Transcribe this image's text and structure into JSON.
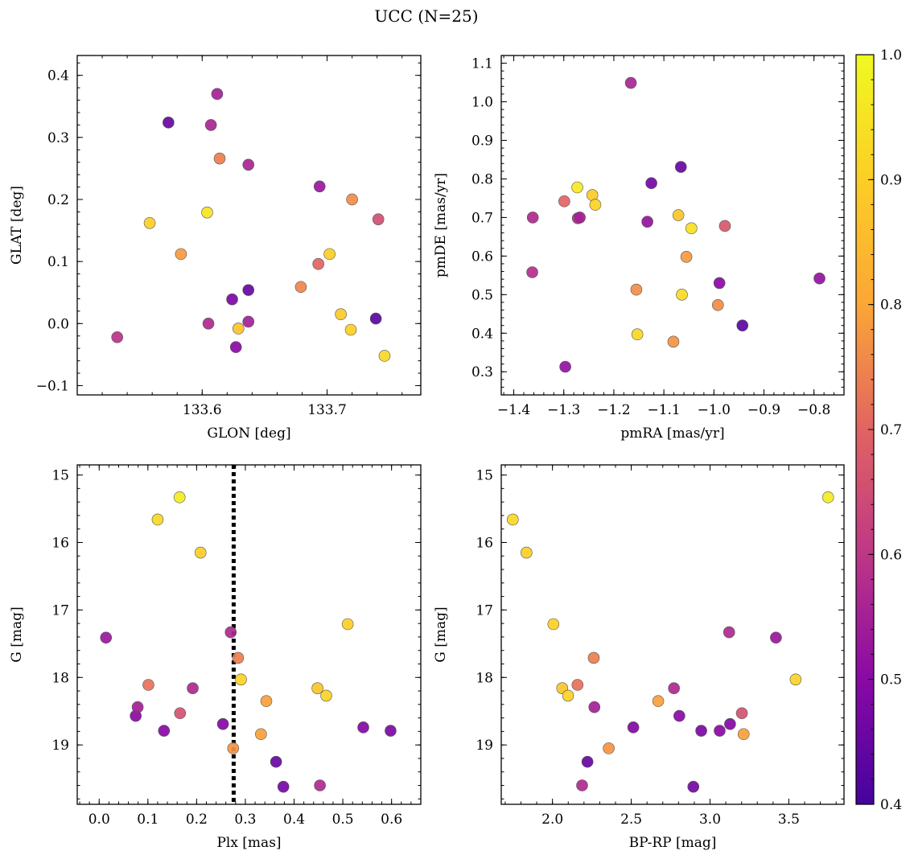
{
  "figure": {
    "title": "UCC (N=25)"
  },
  "colorbar": {
    "range": [
      0.4,
      1.0
    ],
    "colormap": "plasma",
    "ticks": [
      0.4,
      0.5,
      0.6,
      0.7,
      0.8,
      0.9,
      1.0
    ],
    "tick_labels": [
      "0.4",
      "0.5",
      "0.6",
      "0.7",
      "0.8",
      "0.9",
      "1.0"
    ]
  },
  "chart_data": [
    {
      "type": "scatter",
      "xlabel": "GLON [deg]",
      "ylabel": "GLAT [deg]",
      "xlim": [
        133.5,
        133.775
      ],
      "ylim": [
        -0.115,
        0.432
      ],
      "xticks": [
        133.6,
        133.7
      ],
      "xtick_labels": [
        "133.6",
        "133.7"
      ],
      "yticks": [
        -0.1,
        0.0,
        0.1,
        0.2,
        0.3,
        0.4
      ],
      "ytick_labels": [
        "−0.1",
        "0.0",
        "0.1",
        "0.2",
        "0.3",
        "0.4"
      ],
      "invert_y": false,
      "points": [
        {
          "x": 133.532,
          "y": -0.022,
          "c": 0.59
        },
        {
          "x": 133.558,
          "y": 0.162,
          "c": 0.9
        },
        {
          "x": 133.573,
          "y": 0.324,
          "c": 0.45
        },
        {
          "x": 133.583,
          "y": 0.112,
          "c": 0.78
        },
        {
          "x": 133.604,
          "y": 0.179,
          "c": 0.95
        },
        {
          "x": 133.605,
          "y": 0.0,
          "c": 0.57
        },
        {
          "x": 133.607,
          "y": 0.32,
          "c": 0.56
        },
        {
          "x": 133.612,
          "y": 0.37,
          "c": 0.55
        },
        {
          "x": 133.614,
          "y": 0.266,
          "c": 0.74
        },
        {
          "x": 133.624,
          "y": 0.039,
          "c": 0.48
        },
        {
          "x": 133.627,
          "y": -0.038,
          "c": 0.5
        },
        {
          "x": 133.629,
          "y": -0.008,
          "c": 0.87
        },
        {
          "x": 133.637,
          "y": 0.256,
          "c": 0.56
        },
        {
          "x": 133.637,
          "y": 0.003,
          "c": 0.55
        },
        {
          "x": 133.637,
          "y": 0.054,
          "c": 0.45
        },
        {
          "x": 133.679,
          "y": 0.059,
          "c": 0.75
        },
        {
          "x": 133.693,
          "y": 0.096,
          "c": 0.7
        },
        {
          "x": 133.694,
          "y": 0.221,
          "c": 0.53
        },
        {
          "x": 133.702,
          "y": 0.112,
          "c": 0.9
        },
        {
          "x": 133.711,
          "y": 0.015,
          "c": 0.89
        },
        {
          "x": 133.719,
          "y": -0.01,
          "c": 0.9
        },
        {
          "x": 133.72,
          "y": 0.2,
          "c": 0.76
        },
        {
          "x": 133.739,
          "y": 0.008,
          "c": 0.43
        },
        {
          "x": 133.741,
          "y": 0.168,
          "c": 0.65
        },
        {
          "x": 133.746,
          "y": -0.052,
          "c": 0.92
        }
      ]
    },
    {
      "type": "scatter",
      "xlabel": "pmRA [mas/yr]",
      "ylabel": "pmDE [mas/yr]",
      "xlim": [
        -1.425,
        -0.74
      ],
      "ylim": [
        0.24,
        1.12
      ],
      "xticks": [
        -1.4,
        -1.3,
        -1.2,
        -1.1,
        -1.0,
        -0.9,
        -0.8
      ],
      "xtick_labels": [
        "−1.4",
        "−1.3",
        "−1.2",
        "−1.1",
        "−1.0",
        "−0.9",
        "−0.8"
      ],
      "yticks": [
        0.3,
        0.4,
        0.5,
        0.6,
        0.7,
        0.8,
        0.9,
        1.0,
        1.1
      ],
      "ytick_labels": [
        "0.3",
        "0.4",
        "0.5",
        "0.6",
        "0.7",
        "0.8",
        "0.9",
        "1.0",
        "1.1"
      ],
      "invert_y": false,
      "points": [
        {
          "x": -1.362,
          "y": 0.7,
          "c": 0.57
        },
        {
          "x": -1.363,
          "y": 0.558,
          "c": 0.58
        },
        {
          "x": -1.299,
          "y": 0.742,
          "c": 0.7
        },
        {
          "x": -1.297,
          "y": 0.313,
          "c": 0.52
        },
        {
          "x": -1.273,
          "y": 0.778,
          "c": 0.96
        },
        {
          "x": -1.272,
          "y": 0.698,
          "c": 0.58
        },
        {
          "x": -1.268,
          "y": 0.7,
          "c": 0.55
        },
        {
          "x": -1.243,
          "y": 0.758,
          "c": 0.89
        },
        {
          "x": -1.237,
          "y": 0.733,
          "c": 0.91
        },
        {
          "x": -1.166,
          "y": 1.049,
          "c": 0.56
        },
        {
          "x": -1.155,
          "y": 0.513,
          "c": 0.76
        },
        {
          "x": -1.153,
          "y": 0.397,
          "c": 0.92
        },
        {
          "x": -1.133,
          "y": 0.689,
          "c": 0.52
        },
        {
          "x": -1.125,
          "y": 0.789,
          "c": 0.47
        },
        {
          "x": -1.081,
          "y": 0.378,
          "c": 0.77
        },
        {
          "x": -1.071,
          "y": 0.706,
          "c": 0.88
        },
        {
          "x": -1.066,
          "y": 0.831,
          "c": 0.45
        },
        {
          "x": -1.064,
          "y": 0.5,
          "c": 0.93
        },
        {
          "x": -1.055,
          "y": 0.598,
          "c": 0.78
        },
        {
          "x": -1.045,
          "y": 0.672,
          "c": 0.94
        },
        {
          "x": -0.992,
          "y": 0.473,
          "c": 0.76
        },
        {
          "x": -0.989,
          "y": 0.53,
          "c": 0.5
        },
        {
          "x": -0.978,
          "y": 0.678,
          "c": 0.67
        },
        {
          "x": -0.943,
          "y": 0.42,
          "c": 0.43
        },
        {
          "x": -0.789,
          "y": 0.542,
          "c": 0.52
        }
      ]
    },
    {
      "type": "scatter",
      "xlabel": "Plx [mas]",
      "ylabel": "G [mag]",
      "xlim": [
        -0.045,
        0.66
      ],
      "ylim": [
        19.88,
        14.85
      ],
      "xticks": [
        0.0,
        0.1,
        0.2,
        0.3,
        0.4,
        0.5,
        0.6
      ],
      "xtick_labels": [
        "0.0",
        "0.1",
        "0.2",
        "0.3",
        "0.4",
        "0.5",
        "0.6"
      ],
      "yticks": [
        15,
        16,
        17,
        18,
        19
      ],
      "ytick_labels": [
        "15",
        "16",
        "17",
        "18",
        "19"
      ],
      "invert_y": true,
      "vline": 0.276,
      "points": [
        {
          "x": 0.014,
          "y": 17.41,
          "c": 0.53
        },
        {
          "x": 0.075,
          "y": 18.57,
          "c": 0.5
        },
        {
          "x": 0.079,
          "y": 18.44,
          "c": 0.55
        },
        {
          "x": 0.101,
          "y": 18.11,
          "c": 0.72
        },
        {
          "x": 0.12,
          "y": 15.66,
          "c": 0.92
        },
        {
          "x": 0.133,
          "y": 18.79,
          "c": 0.5
        },
        {
          "x": 0.165,
          "y": 15.33,
          "c": 0.97
        },
        {
          "x": 0.166,
          "y": 18.53,
          "c": 0.66
        },
        {
          "x": 0.192,
          "y": 18.16,
          "c": 0.57
        },
        {
          "x": 0.208,
          "y": 16.15,
          "c": 0.9
        },
        {
          "x": 0.254,
          "y": 18.69,
          "c": 0.49
        },
        {
          "x": 0.27,
          "y": 17.33,
          "c": 0.57
        },
        {
          "x": 0.275,
          "y": 19.05,
          "c": 0.77
        },
        {
          "x": 0.285,
          "y": 17.71,
          "c": 0.74
        },
        {
          "x": 0.291,
          "y": 18.03,
          "c": 0.91
        },
        {
          "x": 0.332,
          "y": 18.84,
          "c": 0.79
        },
        {
          "x": 0.343,
          "y": 18.35,
          "c": 0.79
        },
        {
          "x": 0.363,
          "y": 19.25,
          "c": 0.45
        },
        {
          "x": 0.378,
          "y": 19.62,
          "c": 0.47
        },
        {
          "x": 0.448,
          "y": 18.16,
          "c": 0.88
        },
        {
          "x": 0.453,
          "y": 19.6,
          "c": 0.57
        },
        {
          "x": 0.466,
          "y": 18.27,
          "c": 0.91
        },
        {
          "x": 0.51,
          "y": 17.21,
          "c": 0.9
        },
        {
          "x": 0.542,
          "y": 18.74,
          "c": 0.49
        },
        {
          "x": 0.598,
          "y": 18.79,
          "c": 0.48
        }
      ]
    },
    {
      "type": "scatter",
      "xlabel": "BP-RP [mag]",
      "ylabel": "G [mag]",
      "xlim": [
        1.675,
        3.85
      ],
      "ylim": [
        19.88,
        14.85
      ],
      "xticks": [
        2.0,
        2.5,
        3.0,
        3.5
      ],
      "xtick_labels": [
        "2.0",
        "2.5",
        "3.0",
        "3.5"
      ],
      "yticks": [
        15,
        16,
        17,
        18,
        19
      ],
      "ytick_labels": [
        "15",
        "16",
        "17",
        "18",
        "19"
      ],
      "invert_y": true,
      "points": [
        {
          "x": 1.748,
          "y": 15.66,
          "c": 0.92
        },
        {
          "x": 1.835,
          "y": 16.15,
          "c": 0.9
        },
        {
          "x": 2.006,
          "y": 17.21,
          "c": 0.9
        },
        {
          "x": 2.062,
          "y": 18.16,
          "c": 0.88
        },
        {
          "x": 2.099,
          "y": 18.27,
          "c": 0.91
        },
        {
          "x": 2.159,
          "y": 18.11,
          "c": 0.72
        },
        {
          "x": 2.188,
          "y": 19.6,
          "c": 0.57
        },
        {
          "x": 2.222,
          "y": 19.25,
          "c": 0.45
        },
        {
          "x": 2.262,
          "y": 17.71,
          "c": 0.74
        },
        {
          "x": 2.266,
          "y": 18.44,
          "c": 0.55
        },
        {
          "x": 2.357,
          "y": 19.05,
          "c": 0.77
        },
        {
          "x": 2.513,
          "y": 18.74,
          "c": 0.49
        },
        {
          "x": 2.671,
          "y": 18.35,
          "c": 0.79
        },
        {
          "x": 2.771,
          "y": 18.16,
          "c": 0.57
        },
        {
          "x": 2.805,
          "y": 18.57,
          "c": 0.5
        },
        {
          "x": 2.894,
          "y": 19.62,
          "c": 0.47
        },
        {
          "x": 2.944,
          "y": 18.79,
          "c": 0.48
        },
        {
          "x": 3.061,
          "y": 18.79,
          "c": 0.5
        },
        {
          "x": 3.121,
          "y": 17.33,
          "c": 0.57
        },
        {
          "x": 3.127,
          "y": 18.69,
          "c": 0.49
        },
        {
          "x": 3.202,
          "y": 18.53,
          "c": 0.66
        },
        {
          "x": 3.213,
          "y": 18.84,
          "c": 0.79
        },
        {
          "x": 3.418,
          "y": 17.41,
          "c": 0.53
        },
        {
          "x": 3.543,
          "y": 18.03,
          "c": 0.91
        },
        {
          "x": 3.749,
          "y": 15.33,
          "c": 0.97
        }
      ]
    }
  ]
}
